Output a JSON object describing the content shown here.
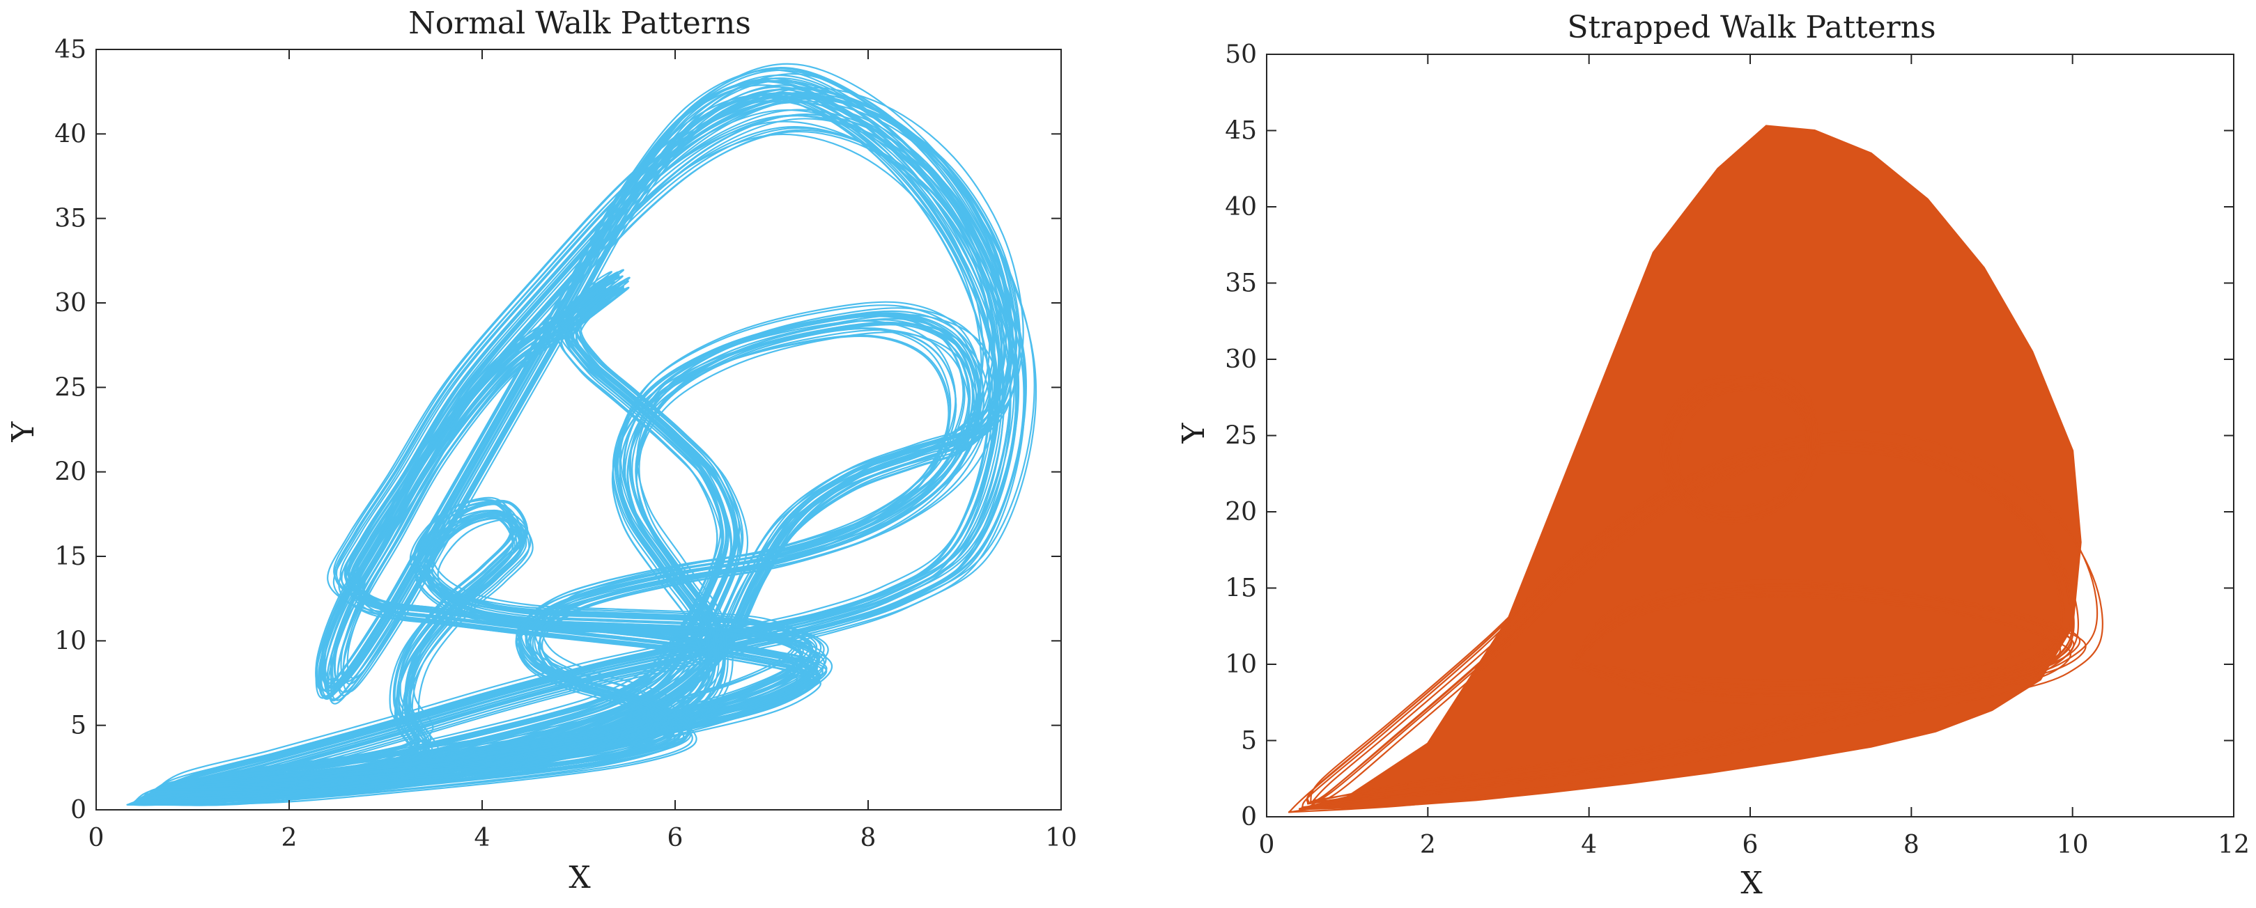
{
  "chart_data": [
    {
      "type": "line",
      "title": "Normal Walk Patterns",
      "xlabel": "X",
      "ylabel": "Y",
      "xlim": [
        0,
        10
      ],
      "ylim": [
        0,
        45
      ],
      "xticks": [
        0,
        2,
        4,
        6,
        8,
        10
      ],
      "yticks": [
        0,
        5,
        10,
        15,
        20,
        25,
        30,
        35,
        40,
        45
      ],
      "grid": false,
      "color": "#4DBEEE",
      "series": [
        {
          "loops": [
            {
              "x": [
                0.5,
                1.5,
                2.6,
                3.3,
                3.9,
                4.6,
                5.3,
                5.8,
                6.1,
                6.4,
                6.6,
                6.4,
                6.0,
                5.5,
                5.1,
                4.9,
                5.2,
                5.4,
                4.9,
                4.2,
                3.5,
                3.0,
                2.6,
                2.4,
                2.5,
                3.0,
                3.6,
                4.3,
                4.9,
                5.5,
                6.2,
                7.0,
                7.8,
                8.6,
                9.2,
                9.5,
                9.4,
                9.0,
                8.3,
                7.5,
                6.7,
                6.0,
                5.2,
                4.2,
                3.0,
                1.8,
                0.9,
                0.5
              ],
              "y": [
                0.8,
                1.4,
                2.2,
                3.0,
                3.8,
                4.8,
                6.0,
                7.5,
                9.5,
                12.5,
                16.0,
                19.5,
                22.0,
                24.5,
                26.5,
                28.5,
                30.5,
                31.2,
                29.0,
                26.0,
                21.0,
                16.0,
                12.0,
                8.5,
                7.0,
                11.0,
                17.0,
                24.0,
                30.0,
                36.0,
                41.0,
                43.0,
                41.5,
                37.5,
                32.0,
                26.0,
                20.0,
                15.0,
                12.5,
                11.0,
                10.0,
                9.0,
                8.0,
                6.5,
                4.5,
                2.6,
                1.3,
                0.8
              ]
            },
            {
              "x": [
                0.5,
                1.6,
                2.8,
                3.6,
                4.3,
                5.0,
                5.6,
                6.1,
                6.5,
                6.8,
                7.2,
                7.8,
                8.5,
                9.0,
                9.3,
                9.4,
                9.2,
                8.7,
                8.0,
                7.2,
                6.4,
                5.6,
                4.7,
                3.8,
                3.2,
                2.8,
                2.6,
                2.9,
                3.5,
                4.2,
                5.0,
                5.8,
                6.4,
                6.9,
                7.3,
                7.4,
                7.0,
                6.2,
                5.2,
                4.0,
                2.8,
                1.6,
                0.8,
                0.5
              ],
              "y": [
                0.8,
                1.3,
                1.9,
                2.6,
                3.4,
                4.4,
                5.8,
                7.6,
                10.0,
                13.5,
                17.0,
                19.5,
                21.0,
                22.0,
                24.0,
                28.0,
                33.0,
                37.5,
                40.5,
                41.5,
                40.0,
                36.5,
                31.0,
                25.0,
                19.5,
                16.0,
                13.5,
                12.0,
                11.5,
                11.0,
                10.5,
                10.0,
                9.5,
                9.0,
                8.5,
                7.8,
                6.5,
                5.3,
                4.2,
                3.2,
                2.3,
                1.5,
                1.0,
                0.8
              ]
            },
            {
              "x": [
                0.6,
                1.8,
                3.0,
                3.4,
                3.2,
                3.3,
                3.7,
                4.1,
                4.4,
                4.2,
                3.7,
                3.4,
                3.7,
                4.4,
                5.4,
                6.3,
                7.0,
                7.4,
                7.3,
                6.8,
                6.0,
                5.0,
                3.8,
                2.5,
                1.4,
                0.6
              ],
              "y": [
                0.9,
                1.6,
                2.6,
                3.8,
                6.0,
                9.0,
                12.0,
                14.0,
                16.0,
                17.8,
                17.0,
                14.5,
                12.5,
                11.5,
                11.2,
                11.0,
                10.6,
                9.6,
                8.4,
                7.0,
                5.6,
                4.3,
                3.1,
                2.0,
                1.2,
                0.9
              ]
            },
            {
              "x": [
                0.5,
                2.0,
                3.4,
                4.6,
                5.6,
                6.3,
                6.4,
                6.0,
                5.6,
                5.5,
                5.8,
                6.5,
                7.4,
                8.3,
                8.9,
                9.1,
                8.8,
                8.1,
                7.1,
                6.1,
                5.3,
                4.8,
                4.5,
                4.6,
                5.0,
                5.6,
                6.0,
                6.0,
                5.4,
                4.4,
                3.2,
                2.0,
                1.0,
                0.5
              ],
              "y": [
                0.8,
                1.4,
                2.2,
                3.2,
                4.6,
                7.0,
                10.5,
                14.0,
                17.5,
                21.0,
                24.5,
                27.0,
                28.5,
                29.0,
                27.5,
                24.0,
                20.0,
                17.0,
                15.0,
                14.0,
                13.0,
                12.0,
                10.5,
                8.8,
                7.6,
                6.6,
                5.4,
                4.3,
                3.3,
                2.5,
                1.8,
                1.2,
                0.9,
                0.8
              ]
            }
          ]
        }
      ]
    },
    {
      "type": "line",
      "title": "Strapped Walk Patterns",
      "xlabel": "X",
      "ylabel": "Y",
      "xlim": [
        0,
        12
      ],
      "ylim": [
        0,
        50
      ],
      "xticks": [
        0,
        2,
        4,
        6,
        8,
        10,
        12
      ],
      "yticks": [
        0,
        5,
        10,
        15,
        20,
        25,
        30,
        35,
        40,
        45,
        50
      ],
      "grid": false,
      "color": "#D95319",
      "series": [
        {
          "fill_outline": {
            "x": [
              0.4,
              1.0,
              2.0,
              3.0,
              3.9,
              4.8,
              5.6,
              6.2,
              6.8,
              7.5,
              8.2,
              8.9,
              9.5,
              10.0,
              10.1,
              10.0,
              9.6,
              9.0,
              8.3,
              7.5,
              6.5,
              5.5,
              4.5,
              3.5,
              2.6,
              1.8,
              1.0,
              0.4
            ],
            "y": [
              0.5,
              1.3,
              4.8,
              13.0,
              25.0,
              37.0,
              42.5,
              45.3,
              45.0,
              43.5,
              40.5,
              36.0,
              30.5,
              24.0,
              18.0,
              12.5,
              9.0,
              7.0,
              5.6,
              4.6,
              3.7,
              2.9,
              2.2,
              1.6,
              1.1,
              0.8,
              0.6,
              0.5
            ]
          },
          "loops": [
            {
              "x": [
                0.4,
                1.8,
                3.2,
                4.4,
                5.4,
                6.2,
                7.1,
                8.1,
                9.0,
                9.7,
                10.1,
                10.0,
                9.5,
                8.6,
                7.5,
                6.3,
                5.1,
                3.9,
                2.7,
                1.5,
                0.6,
                0.4
              ],
              "y": [
                0.5,
                1.4,
                2.4,
                3.4,
                4.4,
                5.4,
                6.5,
                7.6,
                8.6,
                9.8,
                12.0,
                16.0,
                20.0,
                23.0,
                24.5,
                24.0,
                21.5,
                17.0,
                11.0,
                5.5,
                1.5,
                0.5
              ]
            },
            {
              "x": [
                6.0,
                5.5,
                5.1,
                5.0,
                5.3,
                5.9,
                6.5,
                6.8,
                6.7,
                6.3,
                6.0
              ],
              "y": [
                28.5,
                28.0,
                26.0,
                23.0,
                20.5,
                19.8,
                21.0,
                24.0,
                27.0,
                28.5,
                28.5
              ]
            },
            {
              "x": [
                3.8,
                4.2,
                4.8,
                5.6,
                6.6,
                7.6,
                8.6,
                9.4,
                9.9,
                9.6,
                8.8,
                7.6,
                6.3,
                5.0,
                3.8
              ],
              "y": [
                10.0,
                12.5,
                14.0,
                14.8,
                15.0,
                14.6,
                13.8,
                12.8,
                11.5,
                10.0,
                9.0,
                8.4,
                8.2,
                8.6,
                10.0
              ]
            }
          ]
        }
      ]
    }
  ]
}
